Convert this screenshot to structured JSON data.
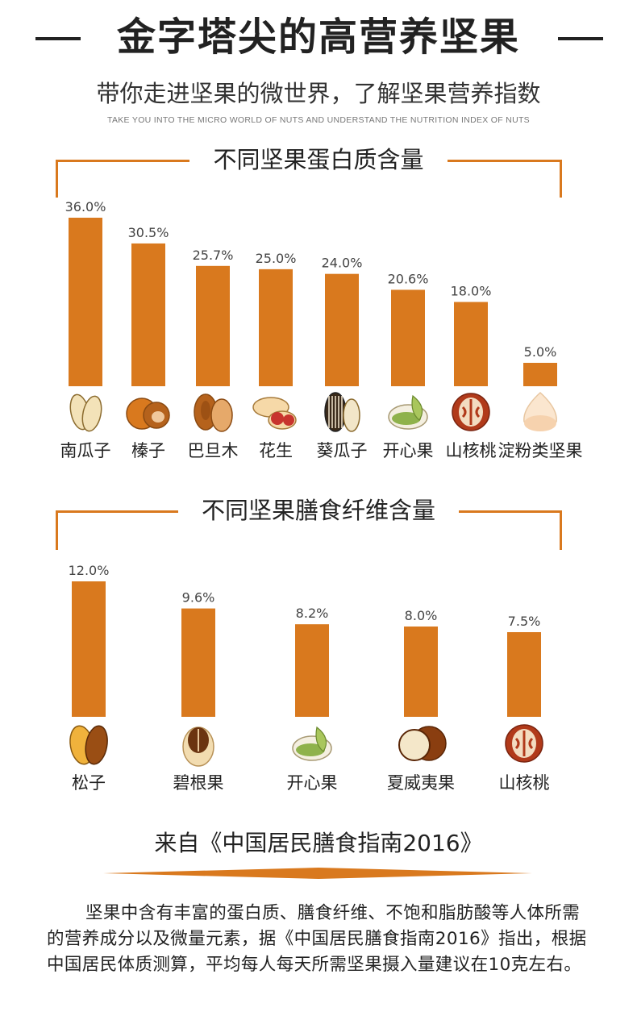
{
  "header": {
    "title": "金字塔尖的高营养坚果",
    "subtitle": "带你走进坚果的微世界，了解坚果营养指数",
    "subtitle_en": "TAKE YOU INTO THE MICRO WORLD OF NUTS AND UNDERSTAND THE NUTRITION INDEX OF NUTS"
  },
  "colors": {
    "bar": "#d9791e",
    "frame": "#d9791e",
    "text": "#333333"
  },
  "chart_data": [
    {
      "type": "bar",
      "title": "不同坚果蛋白质含量",
      "categories": [
        "南瓜子",
        "榛子",
        "巴旦木",
        "花生",
        "葵瓜子",
        "开心果",
        "山核桃",
        "淀粉类坚果"
      ],
      "values": [
        36.0,
        30.5,
        25.7,
        25.0,
        24.0,
        20.6,
        18.0,
        5.0
      ],
      "labels": [
        "36.0%",
        "30.5%",
        "25.7%",
        "25.0%",
        "24.0%",
        "20.6%",
        "18.0%",
        "5.0%"
      ],
      "icons": [
        "pumpkin-seed-icon",
        "hazelnut-icon",
        "almond-icon",
        "peanut-icon",
        "sunflower-seed-icon",
        "pistachio-icon",
        "walnut-icon",
        "chestnut-icon"
      ],
      "ylim": [
        0,
        36
      ]
    },
    {
      "type": "bar",
      "title": "不同坚果膳食纤维含量",
      "categories": [
        "松子",
        "碧根果",
        "开心果",
        "夏威夷果",
        "山核桃"
      ],
      "values": [
        12.0,
        9.6,
        8.2,
        8.0,
        7.5
      ],
      "labels": [
        "12.0%",
        "9.6%",
        "8.2%",
        "8.0%",
        "7.5%"
      ],
      "icons": [
        "pine-nut-icon",
        "pecan-icon",
        "pistachio-icon",
        "macadamia-icon",
        "walnut-icon"
      ],
      "ylim": [
        0,
        12
      ]
    }
  ],
  "footer": {
    "source": "来自《中国居民膳食指南2016》",
    "paragraph": "坚果中含有丰富的蛋白质、膳食纤维、不饱和脂肪酸等人体所需的营养成分以及微量元素，据《中国居民膳食指南2016》指出，根据中国居民体质测算，平均每人每天所需坚果摄入量建议在10克左右。"
  }
}
